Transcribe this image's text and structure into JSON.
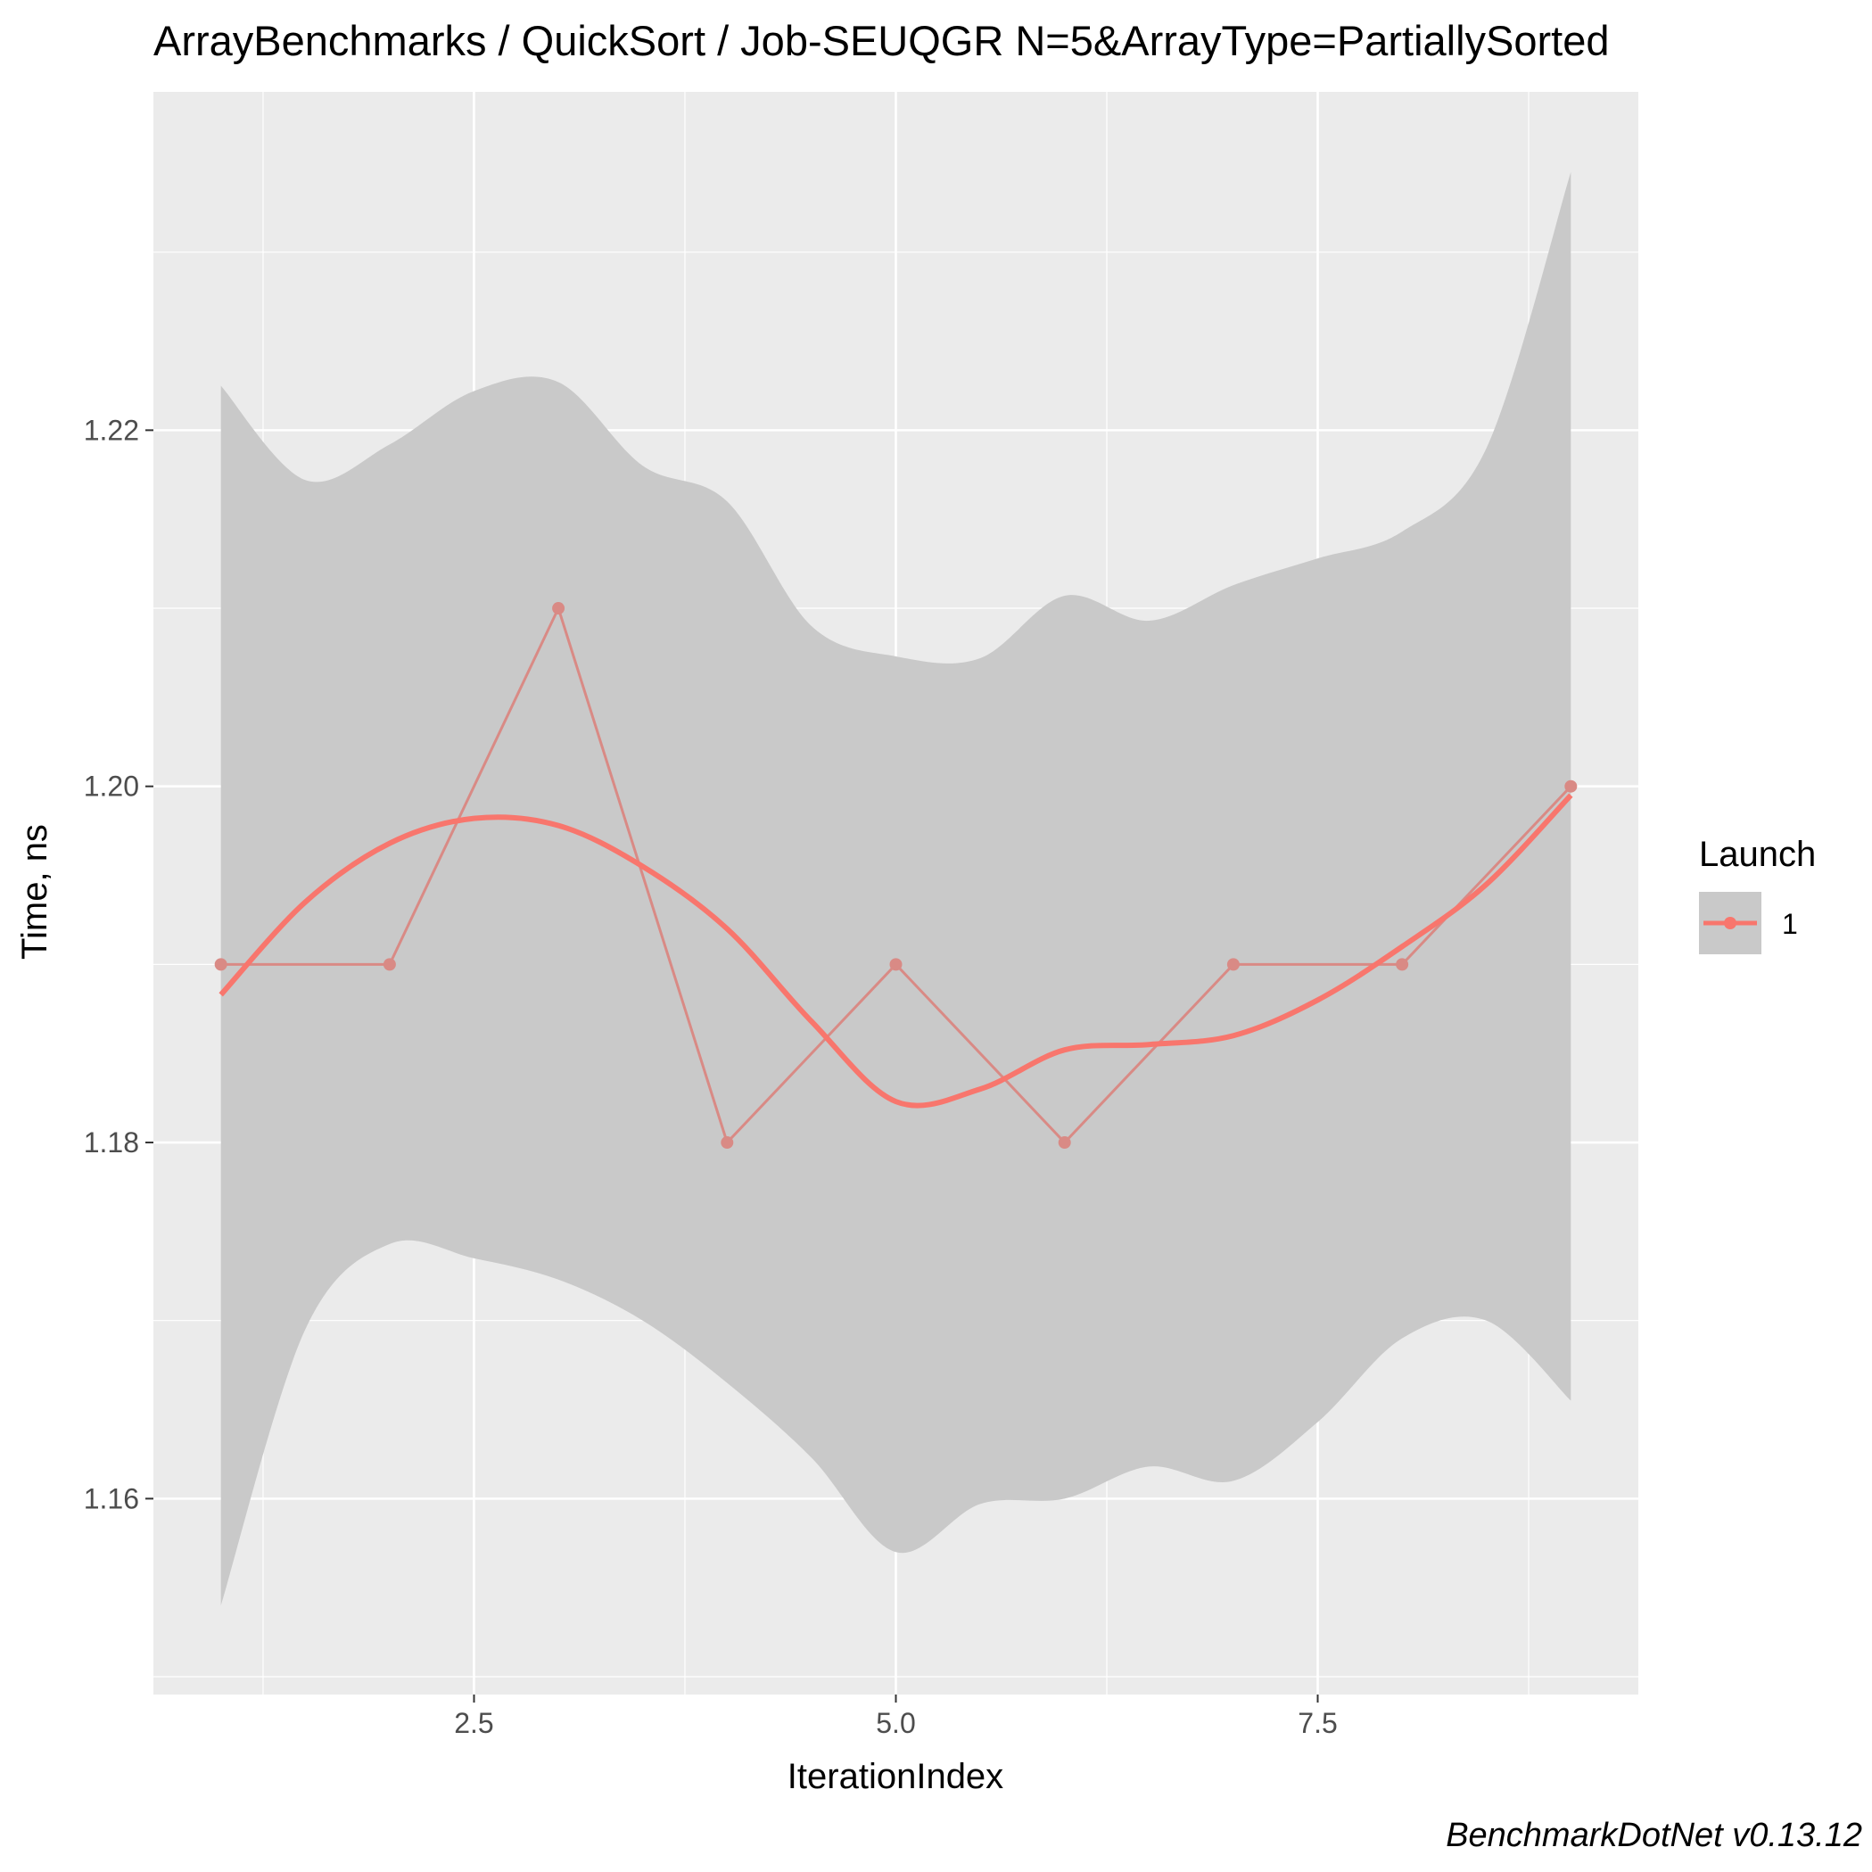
{
  "chart_data": {
    "type": "line",
    "title": "ArrayBenchmarks / QuickSort / Job-SEUQGR N=5&ArrayType=PartiallySorted",
    "xlabel": "IterationIndex",
    "ylabel": "Time, ns",
    "xlim": [
      0.6,
      9.4
    ],
    "ylim": [
      1.149,
      1.239
    ],
    "x_ticks": [
      "2.5",
      "5.0",
      "7.5"
    ],
    "y_ticks": [
      "1.16",
      "1.18",
      "1.20",
      "1.22"
    ],
    "grid": true,
    "legend": {
      "title": "Launch",
      "position": "right",
      "entries": [
        "1"
      ]
    },
    "caption": "BenchmarkDotNet v0.13.12",
    "colors": {
      "series": "#f8766d",
      "raw_line": "#d98a85",
      "band": "#c9c9c9",
      "panel": "#ebebeb",
      "grid": "#ffffff"
    },
    "series": [
      {
        "name": "1",
        "x": [
          1,
          2,
          3,
          4,
          5,
          6,
          7,
          8,
          9
        ],
        "y": [
          1.19,
          1.19,
          1.21,
          1.18,
          1.19,
          1.18,
          1.19,
          1.19,
          1.2
        ]
      }
    ],
    "smooth": {
      "x": [
        1.0,
        1.5,
        2.0,
        2.5,
        3.0,
        3.5,
        4.0,
        4.5,
        5.0,
        5.5,
        6.0,
        6.5,
        7.0,
        7.5,
        8.0,
        8.5,
        9.0
      ],
      "y": [
        1.1883,
        1.1935,
        1.1968,
        1.1982,
        1.1978,
        1.1955,
        1.192,
        1.1868,
        1.1823,
        1.183,
        1.1852,
        1.1855,
        1.186,
        1.188,
        1.191,
        1.1945,
        1.1995
      ],
      "upper": [
        1.2225,
        1.2172,
        1.2192,
        1.2222,
        1.2227,
        1.218,
        1.216,
        1.209,
        1.2073,
        1.2072,
        1.2107,
        1.2093,
        1.2113,
        1.2128,
        1.2143,
        1.219,
        1.2345
      ],
      "lower": [
        1.154,
        1.1695,
        1.1743,
        1.1735,
        1.1723,
        1.17,
        1.1665,
        1.1623,
        1.157,
        1.1597,
        1.16,
        1.1618,
        1.161,
        1.1643,
        1.169,
        1.17,
        1.1655
      ]
    }
  }
}
